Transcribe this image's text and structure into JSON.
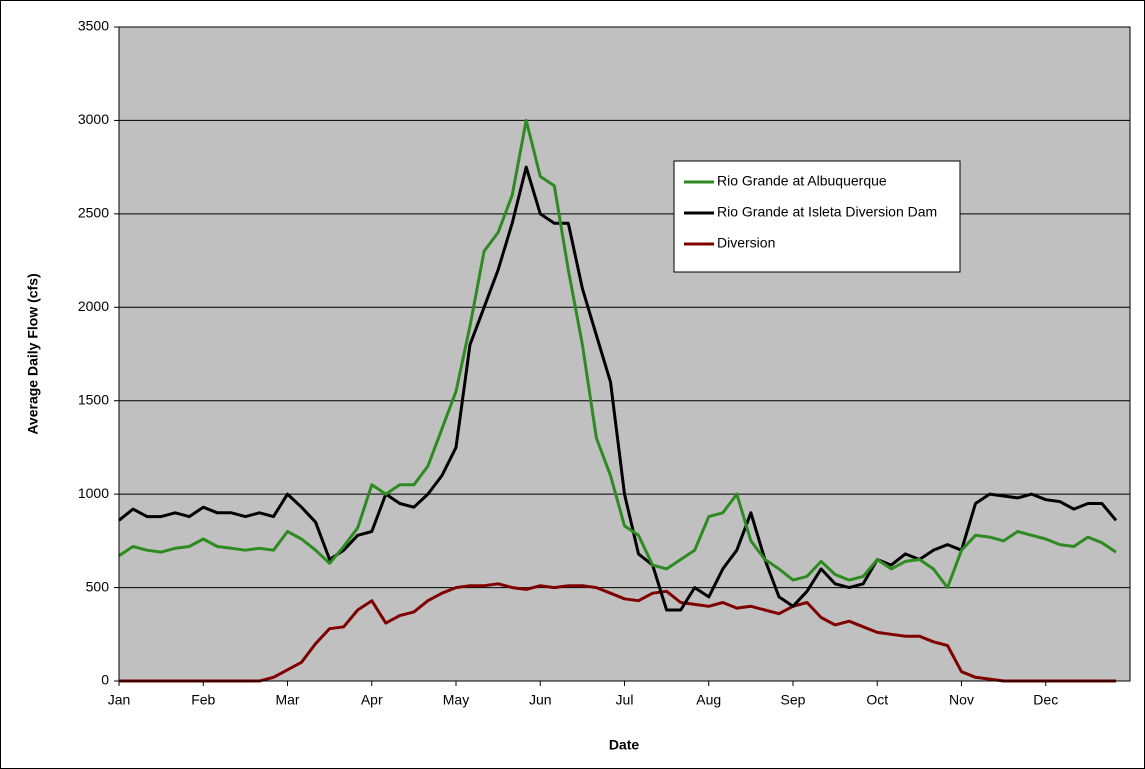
{
  "chart_data": {
    "type": "line",
    "xlabel": "Date",
    "ylabel": "Average Daily Flow (cfs)",
    "categories": [
      "Jan",
      null,
      null,
      null,
      null,
      null,
      "Feb",
      null,
      null,
      null,
      null,
      null,
      "Mar",
      null,
      null,
      null,
      null,
      null,
      "Apr",
      null,
      null,
      null,
      null,
      null,
      "May",
      null,
      null,
      null,
      null,
      null,
      "Jun",
      null,
      null,
      null,
      null,
      null,
      "Jul",
      null,
      null,
      null,
      null,
      null,
      "Aug",
      null,
      null,
      null,
      null,
      null,
      "Sep",
      null,
      null,
      null,
      null,
      null,
      "Oct",
      null,
      null,
      null,
      null,
      null,
      "Nov",
      null,
      null,
      null,
      null,
      null,
      "Dec",
      null,
      null,
      null,
      null,
      null
    ],
    "ylim": [
      0,
      3500
    ],
    "yticks": [
      0,
      500,
      1000,
      1500,
      2000,
      2500,
      3000,
      3500
    ],
    "grid": true,
    "series": [
      {
        "name": "Rio Grande at Albuquerque",
        "color": "#2e8b21",
        "values": [
          670,
          720,
          700,
          690,
          710,
          720,
          760,
          720,
          710,
          700,
          710,
          700,
          800,
          760,
          700,
          630,
          720,
          820,
          1050,
          1000,
          1050,
          1050,
          1150,
          1350,
          1550,
          1900,
          2300,
          2400,
          2600,
          3000,
          2700,
          2650,
          2200,
          1800,
          1300,
          1100,
          830,
          780,
          620,
          600,
          650,
          700,
          880,
          900,
          1000,
          750,
          650,
          600,
          540,
          560,
          640,
          570,
          540,
          560,
          650,
          600,
          640,
          650,
          600,
          500,
          700,
          780,
          770,
          750,
          800,
          780,
          760,
          730,
          720,
          770,
          740,
          690
        ]
      },
      {
        "name": "Rio Grande at Isleta Diversion Dam",
        "color": "#000000",
        "values": [
          860,
          920,
          880,
          880,
          900,
          880,
          930,
          900,
          900,
          880,
          900,
          880,
          1000,
          930,
          850,
          650,
          700,
          780,
          800,
          1000,
          950,
          930,
          1000,
          1100,
          1250,
          1800,
          2000,
          2200,
          2450,
          2750,
          2500,
          2450,
          2450,
          2100,
          1850,
          1600,
          1000,
          680,
          620,
          380,
          380,
          500,
          450,
          600,
          700,
          900,
          650,
          450,
          400,
          480,
          600,
          520,
          500,
          520,
          650,
          620,
          680,
          650,
          700,
          730,
          700,
          950,
          1000,
          990,
          980,
          1000,
          970,
          960,
          920,
          950,
          950,
          860
        ]
      },
      {
        "name": "Diversion",
        "color": "#800000",
        "values": [
          0,
          0,
          0,
          0,
          0,
          0,
          0,
          0,
          0,
          0,
          0,
          20,
          60,
          100,
          200,
          280,
          290,
          380,
          430,
          310,
          350,
          370,
          430,
          470,
          500,
          510,
          510,
          520,
          500,
          490,
          510,
          500,
          510,
          510,
          500,
          470,
          440,
          430,
          470,
          480,
          420,
          410,
          400,
          420,
          390,
          400,
          380,
          360,
          400,
          420,
          340,
          300,
          320,
          290,
          260,
          250,
          240,
          240,
          210,
          190,
          50,
          20,
          10,
          0,
          0,
          0,
          0,
          0,
          0,
          0,
          0,
          0
        ]
      }
    ]
  }
}
